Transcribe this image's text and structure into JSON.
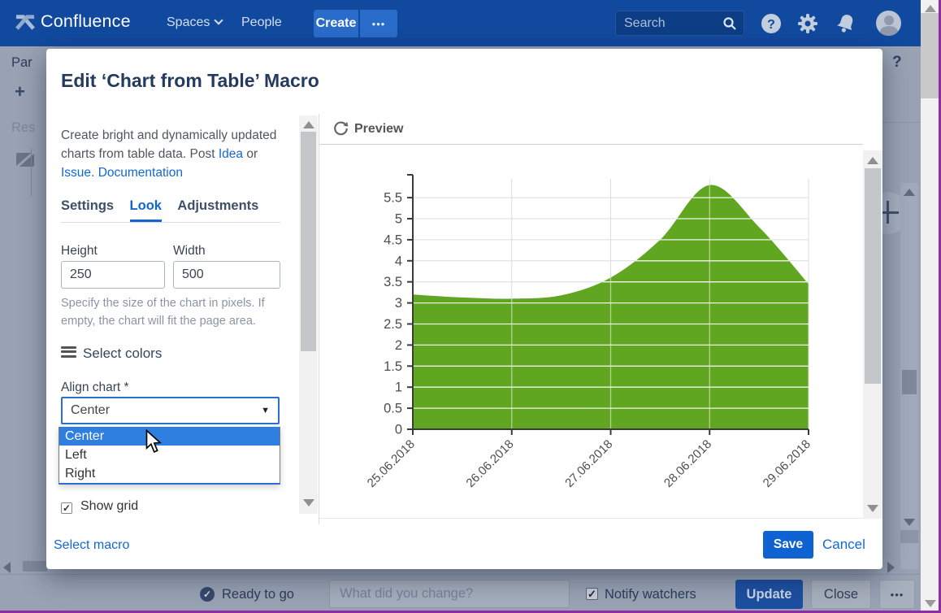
{
  "navbar": {
    "brand": "Confluence",
    "spaces_label": "Spaces",
    "people_label": "People",
    "create_label": "Create",
    "more_label": "•••",
    "search_placeholder": "Search"
  },
  "page_behind": {
    "left_text_1": "Par",
    "left_text_2": "+",
    "left_text_3": "Res",
    "help_glyph": "?"
  },
  "dialog": {
    "title": "Edit ‘Chart from Table’ Macro",
    "description": {
      "part1": "Create bright and dynamically updated charts from table data. Post ",
      "link_idea": "Idea",
      "part2": " or ",
      "link_issue": "Issue",
      "part3": ". ",
      "link_docs": "Documentation"
    },
    "tabs": [
      {
        "label": "Settings",
        "active": false
      },
      {
        "label": "Look",
        "active": true
      },
      {
        "label": "Adjustments",
        "active": false
      }
    ],
    "fields": {
      "height_label": "Height",
      "height_value": "250",
      "width_label": "Width",
      "width_value": "500",
      "size_help": "Specify the size of the chart in pixels. If empty, the chart will fit the page area."
    },
    "select_colors_label": "Select colors",
    "align": {
      "label": "Align chart *",
      "value": "Center",
      "options": [
        "Center",
        "Left",
        "Right"
      ],
      "highlighted_option": "Center"
    },
    "show_grid_label": "Show grid",
    "show_grid_checked": true,
    "preview_label": "Preview",
    "footer": {
      "select_macro": "Select macro",
      "save": "Save",
      "cancel": "Cancel"
    }
  },
  "chart_data": {
    "type": "area",
    "title": "",
    "xlabel": "",
    "ylabel": "",
    "categories": [
      "25.06.2018",
      "26.06.2018",
      "27.06.2018",
      "28.06.2018",
      "29.06.2018"
    ],
    "values": [
      3.2,
      3.1,
      3.6,
      5.8,
      3.45
    ],
    "curve_points": [
      [
        0,
        3.2
      ],
      [
        0.5,
        3.13
      ],
      [
        1,
        3.1
      ],
      [
        1.5,
        3.18
      ],
      [
        2,
        3.6
      ],
      [
        2.5,
        4.5
      ],
      [
        3,
        5.8
      ],
      [
        3.5,
        4.8
      ],
      [
        4,
        3.45
      ]
    ],
    "yticks": [
      0,
      0.5,
      1,
      1.5,
      2,
      2.5,
      3,
      3.5,
      4,
      4.5,
      5,
      5.5
    ],
    "ylim": [
      0,
      5.9
    ],
    "grid": true,
    "legend": "none",
    "area_color": "#61a621"
  },
  "bottom_bar": {
    "status": "Ready to go",
    "change_placeholder": "What did you change?",
    "notify_label": "Notify watchers",
    "notify_checked": true,
    "update": "Update",
    "close": "Close",
    "more": "•••"
  },
  "colors": {
    "navbar_blue": "#11499e",
    "create_button_blue": "#2a6cc9",
    "accent_link_blue": "#1268d2",
    "save_button_blue": "#0f62d2",
    "option_highlight_blue": "#2e7fe0",
    "chart_green": "#61a621",
    "dimmed_background": "#98a2b3",
    "capture_border_purple": "#8e2ca6"
  }
}
